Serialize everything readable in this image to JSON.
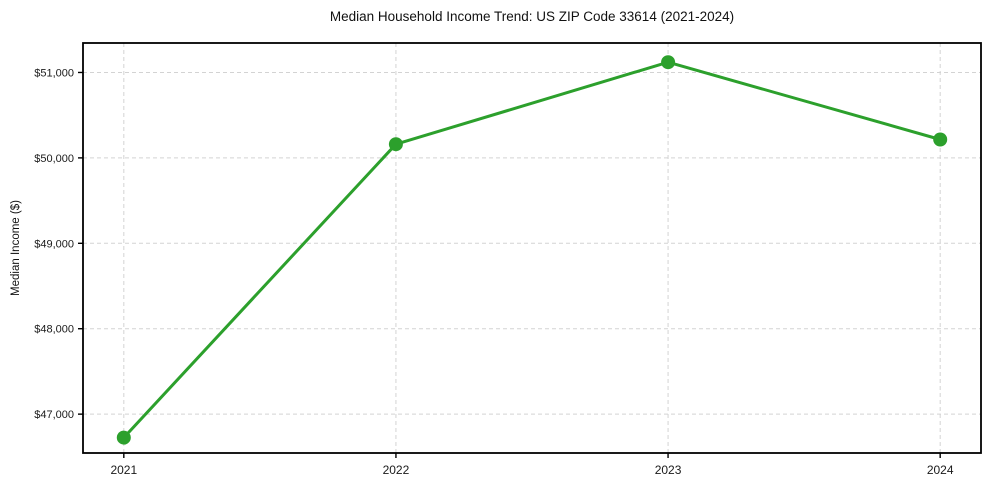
{
  "chart_data": {
    "type": "line",
    "title": "Median Household Income Trend: US ZIP Code 33614 (2021-2024)",
    "xlabel": "",
    "ylabel": "Median Income ($)",
    "x": [
      2021,
      2022,
      2023,
      2024
    ],
    "values": [
      46725,
      50160,
      51120,
      50215
    ],
    "series_name": "Median Household Income",
    "xtick_labels": [
      "2021",
      "2022",
      "2023",
      "2024"
    ],
    "ytick_values": [
      47000,
      48000,
      49000,
      50000,
      51000
    ],
    "ytick_labels": [
      "$47,000",
      "$48,000",
      "$49,000",
      "$50,000",
      "$51,000"
    ],
    "xlim": [
      2020.85,
      2024.15
    ],
    "ylim": [
      46545,
      51345
    ],
    "grid": true,
    "grid_style": "dashed",
    "legend": "none",
    "marker": "circle",
    "colors": {
      "line": "#2ca02c",
      "marker": "#2ca02c",
      "grid": "#d3d3d3",
      "spine": "#000000",
      "text": "#1a1a1a",
      "background": "#ffffff"
    }
  }
}
